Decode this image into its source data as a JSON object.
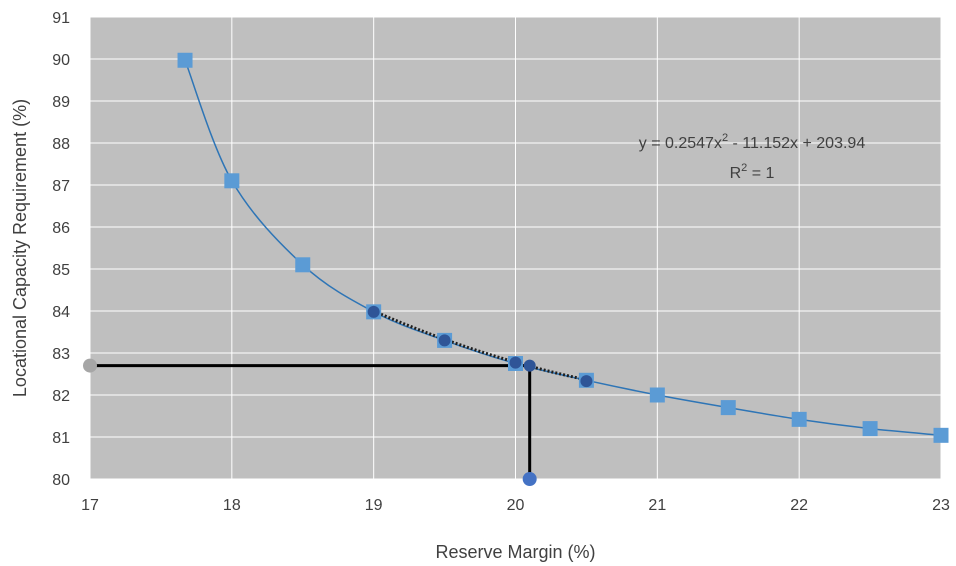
{
  "chart_data": {
    "type": "scatter",
    "title": "",
    "xlabel": "Reserve Margin (%)",
    "ylabel": "Locational Capacity Requirement (%)",
    "xlim": [
      17,
      23
    ],
    "ylim": [
      80,
      91
    ],
    "x_ticks": [
      "17",
      "18",
      "19",
      "20",
      "21",
      "22",
      "23"
    ],
    "y_ticks": [
      "80",
      "81",
      "82",
      "83",
      "84",
      "85",
      "86",
      "87",
      "88",
      "89",
      "90",
      "91"
    ],
    "grid": true,
    "legend": "none",
    "colors": {
      "plot_background": "#bfbfbf",
      "gridline": "#ffffff",
      "marker": "#5b9bd5",
      "trend_line": "#2e75b6",
      "dark_marker": "#2f5597",
      "guide_line": "#000000",
      "reference_point_y": "#a6a6a6",
      "reference_point_x": "#4472c4"
    },
    "series": [
      {
        "marker": "square",
        "x": [
          17.67,
          18.0,
          18.5,
          19.0,
          19.5,
          20.0,
          20.5,
          21.0,
          21.5,
          22.0,
          22.5,
          23.0
        ],
        "y": [
          89.97,
          87.1,
          85.1,
          83.98,
          83.3,
          82.75,
          82.35,
          82.0,
          81.7,
          81.42,
          81.2,
          81.04
        ]
      },
      {
        "marker": "circle",
        "x": [
          19.0,
          19.5,
          20.0,
          20.1,
          20.5
        ],
        "y": [
          83.98,
          83.3,
          82.77,
          82.7,
          82.33
        ]
      }
    ],
    "fitted_curve": {
      "style": "solid",
      "x_range": [
        17.67,
        23.0
      ]
    },
    "quadratic_fit": {
      "coefficients": [
        0.2547,
        -11.152,
        203.94
      ],
      "x_range": [
        19.0,
        20.5
      ],
      "style": "dotted"
    },
    "guide_point": {
      "x": 20.1,
      "y": 82.7
    },
    "annotations": {
      "equation_prefix": "y = 0.2547x",
      "equation_exponent": "2",
      "equation_suffix": " - 11.152x + 203.94",
      "r_squared_prefix": "R",
      "r_squared_exponent": "2",
      "r_squared_suffix": " = 1"
    }
  }
}
